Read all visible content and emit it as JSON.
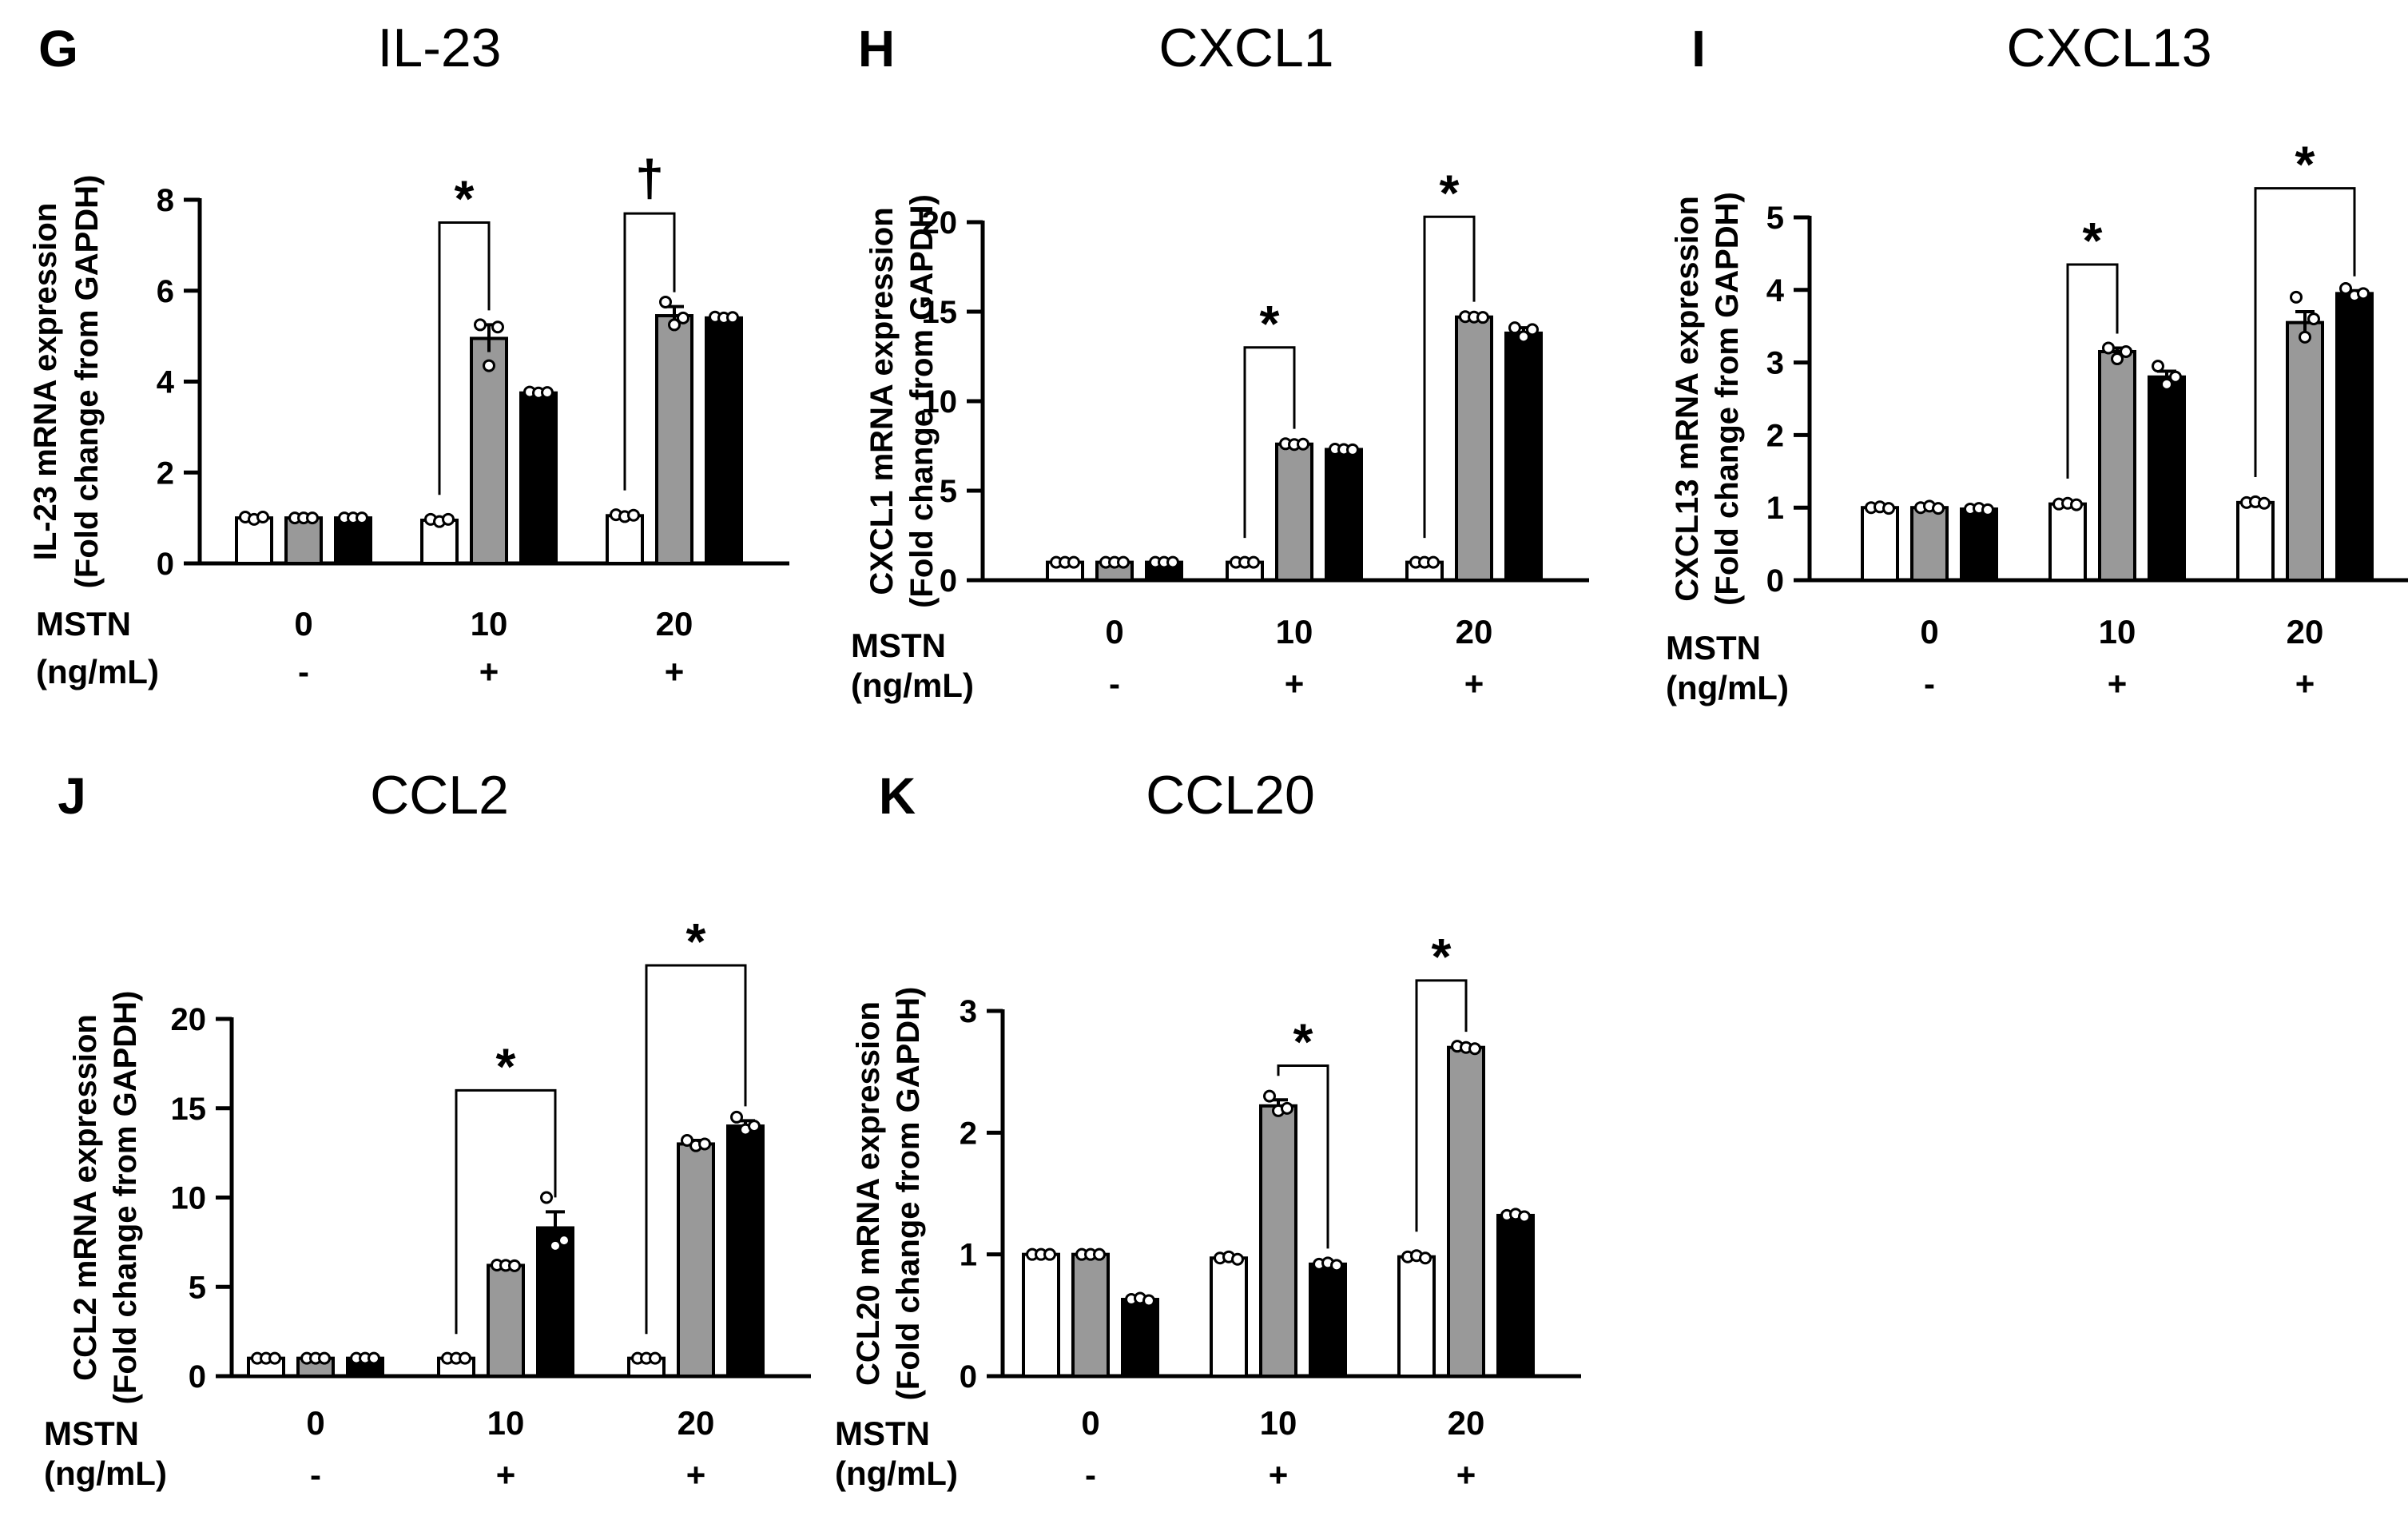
{
  "colors": {
    "group1": "#ffffff",
    "group2": "#999999",
    "group3": "#000000",
    "outline": "#000000"
  },
  "row_labels": {
    "line1": "MSTN",
    "line2": "(ng/mL)"
  },
  "chart_data": [
    {
      "id": "G",
      "type": "bar",
      "panel_letter": "G",
      "title": "IL-23",
      "ylabel_line1": "IL-23 mRNA expression",
      "ylabel_line2": "(Fold change from GAPDH)",
      "ylim": [
        0,
        8
      ],
      "yticks": [
        0,
        2,
        4,
        6,
        8
      ],
      "categories": [
        "0",
        "10",
        "20"
      ],
      "signs": [
        "-",
        "+",
        "+"
      ],
      "series": [
        {
          "name": "group1",
          "values": [
            1.0,
            0.95,
            1.05
          ],
          "errors": [
            0.03,
            0.03,
            0.03
          ],
          "points": [
            [
              1.02,
              0.97,
              1.02
            ],
            [
              0.97,
              0.92,
              0.97
            ],
            [
              1.07,
              1.03,
              1.06
            ]
          ]
        },
        {
          "name": "group2",
          "values": [
            1.0,
            4.95,
            5.45
          ],
          "errors": [
            0.02,
            0.3,
            0.2
          ],
          "points": [
            [
              1.0,
              1.0,
              1.0
            ],
            [
              5.25,
              4.35,
              5.2
            ],
            [
              5.75,
              5.25,
              5.4
            ]
          ]
        },
        {
          "name": "group3",
          "values": [
            1.0,
            3.75,
            5.4
          ],
          "errors": [
            0.02,
            0.05,
            0.05
          ],
          "points": [
            [
              1.0,
              1.0,
              1.0
            ],
            [
              3.77,
              3.75,
              3.76
            ],
            [
              5.42,
              5.4,
              5.41
            ]
          ]
        }
      ],
      "brackets": [
        {
          "category": 1,
          "from": 0,
          "to": 1,
          "level": 7.5,
          "label": "*"
        },
        {
          "category": 2,
          "from": 0,
          "to": 1,
          "level": 7.7,
          "label": "†"
        }
      ]
    },
    {
      "id": "H",
      "type": "bar",
      "panel_letter": "H",
      "title": "CXCL1",
      "ylabel_line1": "CXCL1 mRNA expression",
      "ylabel_line2": "(Fold change from GAPDH)",
      "ylim": [
        0,
        20
      ],
      "yticks": [
        0,
        5,
        10,
        15,
        20
      ],
      "categories": [
        "0",
        "10",
        "20"
      ],
      "signs": [
        "-",
        "+",
        "+"
      ],
      "series": [
        {
          "name": "group1",
          "values": [
            1.0,
            1.0,
            1.0
          ],
          "errors": [
            0.02,
            0.02,
            0.02
          ],
          "points": [
            [
              1.0,
              1.0,
              1.0
            ],
            [
              1.0,
              1.0,
              1.0
            ],
            [
              1.0,
              1.0,
              1.0
            ]
          ]
        },
        {
          "name": "group2",
          "values": [
            1.0,
            7.6,
            14.7
          ],
          "errors": [
            0.02,
            0.05,
            0.05
          ],
          "points": [
            [
              1.0,
              1.0,
              1.0
            ],
            [
              7.62,
              7.58,
              7.6
            ],
            [
              14.72,
              14.7,
              14.68
            ]
          ]
        },
        {
          "name": "group3",
          "values": [
            1.0,
            7.3,
            13.8
          ],
          "errors": [
            0.02,
            0.05,
            0.3
          ],
          "points": [
            [
              1.0,
              1.0,
              1.0
            ],
            [
              7.32,
              7.3,
              7.28
            ],
            [
              14.1,
              13.6,
              14.0
            ]
          ]
        }
      ],
      "brackets": [
        {
          "category": 1,
          "from": 0,
          "to": 1,
          "level": 13.0,
          "label": "*"
        },
        {
          "category": 2,
          "from": 0,
          "to": 1,
          "level": 20.3,
          "label": "*"
        }
      ]
    },
    {
      "id": "I",
      "type": "bar",
      "panel_letter": "I",
      "title": "CXCL13",
      "ylabel_line1": "CXCL13 mRNA expression",
      "ylabel_line2": "(Fold change from GAPDH)",
      "ylim": [
        0,
        5
      ],
      "yticks": [
        0,
        1,
        2,
        3,
        4,
        5
      ],
      "categories": [
        "0",
        "10",
        "20"
      ],
      "signs": [
        "-",
        "+",
        "+"
      ],
      "series": [
        {
          "name": "group1",
          "values": [
            1.0,
            1.05,
            1.07
          ],
          "errors": [
            0.02,
            0.02,
            0.02
          ],
          "points": [
            [
              1.0,
              1.01,
              0.99
            ],
            [
              1.05,
              1.06,
              1.04
            ],
            [
              1.07,
              1.08,
              1.06
            ]
          ]
        },
        {
          "name": "group2",
          "values": [
            1.0,
            3.15,
            3.55
          ],
          "errors": [
            0.02,
            0.05,
            0.15
          ],
          "points": [
            [
              1.0,
              1.02,
              0.99
            ],
            [
              3.2,
              3.05,
              3.15
            ],
            [
              3.9,
              3.35,
              3.6
            ]
          ]
        },
        {
          "name": "group3",
          "values": [
            0.98,
            2.8,
            3.95
          ],
          "errors": [
            0.02,
            0.08,
            0.04
          ],
          "points": [
            [
              0.98,
              0.99,
              0.97
            ],
            [
              2.95,
              2.7,
              2.8
            ],
            [
              4.02,
              3.92,
              3.95
            ]
          ]
        }
      ],
      "brackets": [
        {
          "category": 1,
          "from": 0,
          "to": 1,
          "level": 4.35,
          "label": "*"
        },
        {
          "category": 2,
          "from": 0,
          "to": 2,
          "level": 5.4,
          "label": "*"
        }
      ]
    },
    {
      "id": "J",
      "type": "bar",
      "panel_letter": "J",
      "title": "CCL2",
      "ylabel_line1": "CCL2 mRNA expression",
      "ylabel_line2": "(Fold change from GAPDH)",
      "ylim": [
        0,
        20
      ],
      "yticks": [
        0,
        5,
        10,
        15,
        20
      ],
      "categories": [
        "0",
        "10",
        "20"
      ],
      "signs": [
        "-",
        "+",
        "+"
      ],
      "series": [
        {
          "name": "group1",
          "values": [
            1.0,
            1.0,
            1.0
          ],
          "errors": [
            0.02,
            0.02,
            0.02
          ],
          "points": [
            [
              1.0,
              1.0,
              1.0
            ],
            [
              1.0,
              1.0,
              1.0
            ],
            [
              1.0,
              1.0,
              1.0
            ]
          ]
        },
        {
          "name": "group2",
          "values": [
            1.0,
            6.2,
            13.0
          ],
          "errors": [
            0.02,
            0.05,
            0.2
          ],
          "points": [
            [
              1.0,
              1.0,
              1.0
            ],
            [
              6.22,
              6.2,
              6.18
            ],
            [
              13.2,
              12.9,
              13.0
            ]
          ]
        },
        {
          "name": "group3",
          "values": [
            1.0,
            8.3,
            14.0
          ],
          "errors": [
            0.02,
            0.9,
            0.3
          ],
          "points": [
            [
              1.0,
              1.0,
              1.0
            ],
            [
              10.0,
              7.3,
              7.6
            ],
            [
              14.5,
              13.8,
              14.0
            ]
          ]
        }
      ],
      "brackets": [
        {
          "category": 1,
          "from": 0,
          "to": 2,
          "level": 16.0,
          "label": "*"
        },
        {
          "category": 2,
          "from": 0,
          "to": 2,
          "level": 23.0,
          "label": "*"
        }
      ]
    },
    {
      "id": "K",
      "type": "bar",
      "panel_letter": "K",
      "title": "CCL20",
      "ylabel_line1": "CCL20 mRNA expression",
      "ylabel_line2": "(Fold change from GAPDH)",
      "ylim": [
        0,
        3
      ],
      "yticks": [
        0,
        1,
        2,
        3
      ],
      "categories": [
        "0",
        "10",
        "20"
      ],
      "signs": [
        "-",
        "+",
        "+"
      ],
      "series": [
        {
          "name": "group1",
          "values": [
            1.0,
            0.97,
            0.98
          ],
          "errors": [
            0.01,
            0.01,
            0.01
          ],
          "points": [
            [
              1.0,
              1.0,
              1.0
            ],
            [
              0.97,
              0.98,
              0.96
            ],
            [
              0.98,
              0.99,
              0.97
            ]
          ]
        },
        {
          "name": "group2",
          "values": [
            1.0,
            2.22,
            2.7
          ],
          "errors": [
            0.01,
            0.05,
            0.01
          ],
          "points": [
            [
              1.0,
              1.0,
              1.0
            ],
            [
              2.3,
              2.18,
              2.2
            ],
            [
              2.71,
              2.7,
              2.69
            ]
          ]
        },
        {
          "name": "group3",
          "values": [
            0.63,
            0.92,
            1.32
          ],
          "errors": [
            0.01,
            0.01,
            0.01
          ],
          "points": [
            [
              0.63,
              0.64,
              0.62
            ],
            [
              0.92,
              0.93,
              0.91
            ],
            [
              1.32,
              1.33,
              1.31
            ]
          ]
        }
      ],
      "brackets": [
        {
          "category": 1,
          "from": 1,
          "to": 2,
          "level": 2.55,
          "label": "*"
        },
        {
          "category": 2,
          "from": 0,
          "to": 1,
          "level": 3.25,
          "label": "*"
        }
      ]
    }
  ]
}
